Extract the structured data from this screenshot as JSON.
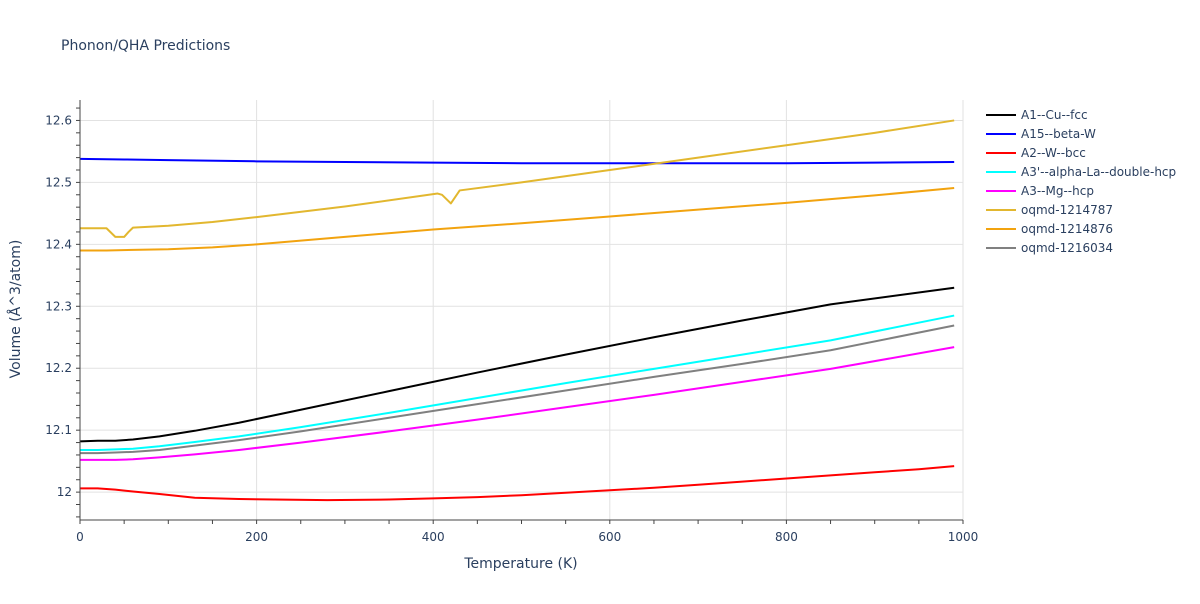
{
  "chart_data": {
    "type": "line",
    "title": "Phonon/QHA Predictions",
    "xlabel": "Temperature (K)",
    "ylabel": "Volume (Å^3/atom)",
    "xlim": [
      0,
      1000
    ],
    "ylim": [
      11.955,
      12.633
    ],
    "xticks": [
      0,
      200,
      400,
      600,
      800,
      1000
    ],
    "yticks": [
      12,
      12.1,
      12.2,
      12.3,
      12.4,
      12.5,
      12.6
    ],
    "ytick_labels": [
      "12",
      "12.1",
      "12.2",
      "12.3",
      "12.4",
      "12.5",
      "12.6"
    ],
    "grid": true,
    "legend_position": "right",
    "series": [
      {
        "name": "A1--Cu--fcc",
        "color": "#000000",
        "x": [
          0,
          20,
          40,
          60,
          90,
          130,
          180,
          250,
          350,
          450,
          550,
          650,
          750,
          850,
          990
        ],
        "y": [
          12.082,
          12.083,
          12.083,
          12.085,
          12.09,
          12.099,
          12.112,
          12.133,
          12.163,
          12.193,
          12.222,
          12.25,
          12.277,
          12.303,
          12.33
        ]
      },
      {
        "name": "A15--beta-W",
        "color": "#0000ff",
        "x": [
          0,
          50,
          100,
          200,
          300,
          400,
          500,
          600,
          700,
          800,
          900,
          990
        ],
        "y": [
          12.538,
          12.537,
          12.536,
          12.534,
          12.533,
          12.532,
          12.531,
          12.531,
          12.531,
          12.531,
          12.532,
          12.533
        ]
      },
      {
        "name": "A2--W--bcc",
        "color": "#ff0000",
        "x": [
          0,
          20,
          40,
          60,
          90,
          130,
          180,
          220,
          280,
          350,
          400,
          450,
          500,
          550,
          600,
          650,
          700,
          750,
          800,
          850,
          900,
          950,
          990
        ],
        "y": [
          12.006,
          12.006,
          12.004,
          12.001,
          11.997,
          11.991,
          11.989,
          11.988,
          11.987,
          11.988,
          11.99,
          11.992,
          11.995,
          11.999,
          12.003,
          12.007,
          12.012,
          12.017,
          12.022,
          12.027,
          12.032,
          12.037,
          12.042
        ]
      },
      {
        "name": "A3'--alpha-La--double-hcp",
        "color": "#00ffff",
        "x": [
          0,
          20,
          40,
          60,
          90,
          130,
          180,
          250,
          350,
          450,
          550,
          650,
          750,
          850,
          990
        ],
        "y": [
          12.068,
          12.068,
          12.069,
          12.07,
          12.074,
          12.081,
          12.09,
          12.105,
          12.128,
          12.152,
          12.176,
          12.199,
          12.222,
          12.245,
          12.285
        ]
      },
      {
        "name": "A3--Mg--hcp",
        "color": "#ff00ff",
        "x": [
          0,
          20,
          40,
          60,
          90,
          130,
          180,
          250,
          350,
          450,
          550,
          650,
          750,
          850,
          990
        ],
        "y": [
          12.052,
          12.052,
          12.052,
          12.053,
          12.056,
          12.061,
          12.068,
          12.08,
          12.098,
          12.117,
          12.137,
          12.157,
          12.178,
          12.199,
          12.234
        ]
      },
      {
        "name": "oqmd-1214787",
        "color": "#e2b72f",
        "x": [
          0,
          30,
          40,
          50,
          55,
          60,
          100,
          150,
          200,
          300,
          405,
          410,
          420,
          430,
          500,
          600,
          700,
          800,
          900,
          990
        ],
        "y": [
          12.426,
          12.426,
          12.412,
          12.412,
          12.42,
          12.427,
          12.43,
          12.436,
          12.444,
          12.461,
          12.482,
          12.48,
          12.466,
          12.487,
          12.5,
          12.52,
          12.54,
          12.56,
          12.58,
          12.6
        ]
      },
      {
        "name": "oqmd-1214876",
        "color": "#f2a30f",
        "x": [
          0,
          30,
          60,
          100,
          150,
          200,
          300,
          400,
          500,
          600,
          700,
          800,
          900,
          990
        ],
        "y": [
          12.39,
          12.39,
          12.391,
          12.392,
          12.395,
          12.4,
          12.412,
          12.424,
          12.434,
          12.445,
          12.456,
          12.467,
          12.479,
          12.491
        ]
      },
      {
        "name": "oqmd-1216034",
        "color": "#808080",
        "x": [
          0,
          20,
          40,
          60,
          90,
          130,
          180,
          250,
          350,
          450,
          550,
          650,
          750,
          850,
          990
        ],
        "y": [
          12.063,
          12.063,
          12.064,
          12.065,
          12.068,
          12.075,
          12.084,
          12.098,
          12.12,
          12.142,
          12.164,
          12.186,
          12.207,
          12.229,
          12.269
        ]
      }
    ]
  }
}
